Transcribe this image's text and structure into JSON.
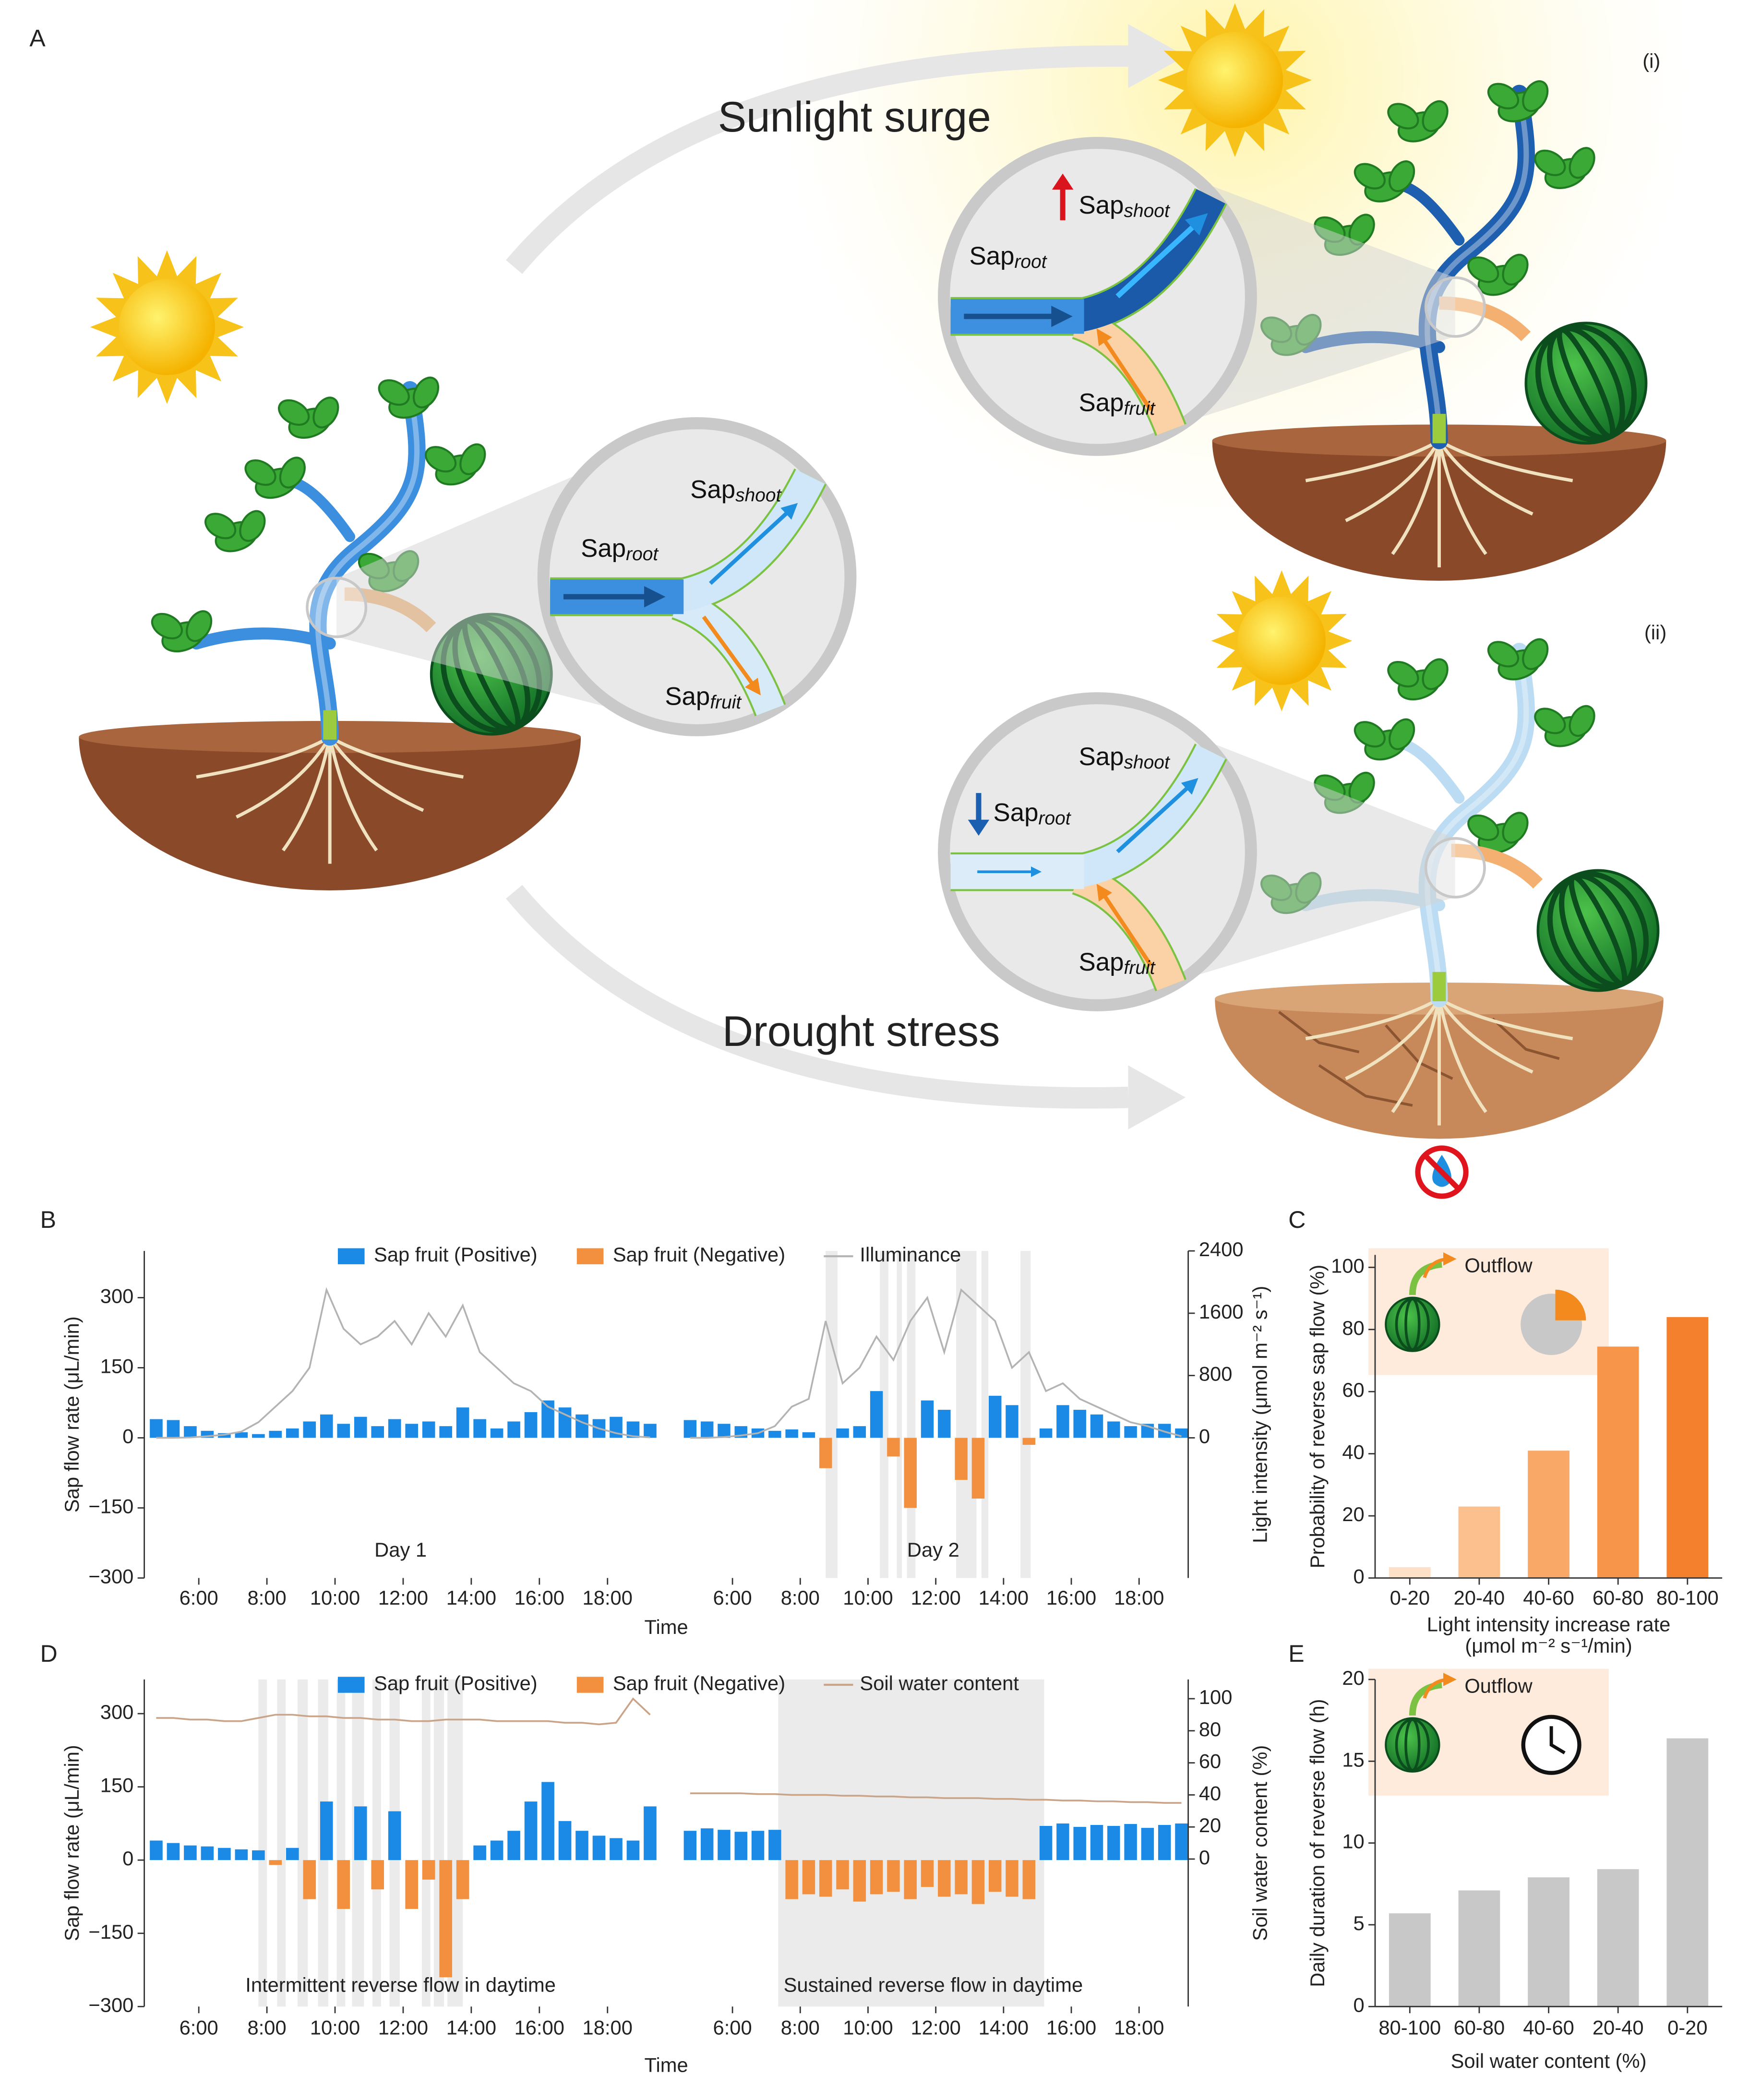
{
  "illustration": {
    "label": "A",
    "top_caption": "Sunlight surge",
    "bottom_caption": "Drought stress",
    "states": [
      "(i)",
      "(ii)"
    ],
    "sap_label": "Sap",
    "subscripts": [
      "shoot",
      "root",
      "fruit"
    ]
  },
  "chart_data": [
    {
      "type": "bar",
      "label": "B",
      "ylabel": "Sap flow rate (μL/min)",
      "y2label": "Light intensity  (μmol m⁻² s⁻¹)",
      "xlabel": "Time",
      "ylim": [
        -300,
        400
      ],
      "yticks": [
        {
          "value": -300,
          "label": "−300"
        },
        {
          "value": -150,
          "label": "−150"
        },
        0,
        150,
        300
      ],
      "y2lim": [
        -1800,
        2400
      ],
      "y2ticks": [
        0,
        800,
        1600,
        2400
      ],
      "xlim": [
        4.4,
        19.45
      ],
      "xticks": [
        {
          "value": 6,
          "label": "6:00"
        },
        {
          "value": 8,
          "label": "8:00"
        },
        {
          "value": 10,
          "label": "10:00"
        },
        {
          "value": 12,
          "label": "12:00"
        },
        {
          "value": 14,
          "label": "14:00"
        },
        {
          "value": 16,
          "label": "16:00"
        },
        {
          "value": 18,
          "label": "18:00"
        }
      ],
      "x": [
        4.75,
        5.25,
        5.75,
        6.25,
        6.75,
        7.25,
        7.75,
        8.25,
        8.75,
        9.25,
        9.75,
        10.25,
        10.75,
        11.25,
        11.75,
        12.25,
        12.75,
        13.25,
        13.75,
        14.25,
        14.75,
        15.25,
        15.75,
        16.25,
        16.75,
        17.25,
        17.75,
        18.25,
        18.75,
        19.25
      ],
      "series": [
        {
          "name": "Sap fruit (Positive)",
          "color": "#1a8ae6"
        },
        {
          "name": "Sap fruit (Negative)",
          "color": "#f2903f"
        },
        {
          "name": "Illuminance",
          "color": "#b3b3b3",
          "axis": "y2"
        }
      ],
      "panels": [
        {
          "annotation": "Day 1",
          "values": [
            40,
            38,
            25,
            15,
            10,
            12,
            8,
            15,
            20,
            35,
            50,
            30,
            45,
            25,
            40,
            30,
            35,
            25,
            65,
            40,
            20,
            35,
            55,
            80,
            65,
            50,
            40,
            45,
            35,
            30
          ],
          "line": [
            0,
            0,
            5,
            20,
            40,
            80,
            200,
            400,
            600,
            900,
            1900,
            1400,
            1200,
            1300,
            1500,
            1200,
            1600,
            1300,
            1700,
            1100,
            900,
            700,
            600,
            400,
            300,
            200,
            120,
            60,
            20,
            5
          ]
        },
        {
          "annotation": "Day 2",
          "values": [
            38,
            35,
            30,
            25,
            20,
            15,
            18,
            12,
            -65,
            20,
            25,
            100,
            -40,
            -150,
            80,
            60,
            -90,
            -130,
            90,
            70,
            -15,
            20,
            70,
            60,
            50,
            35,
            25,
            30,
            30,
            20
          ],
          "line": [
            0,
            0,
            10,
            30,
            60,
            150,
            400,
            500,
            1500,
            700,
            900,
            1300,
            1000,
            1500,
            1800,
            1100,
            1900,
            1700,
            1500,
            900,
            1100,
            600,
            700,
            500,
            400,
            300,
            200,
            150,
            80,
            20
          ],
          "highlights": [
            [
              8.75,
              9.1
            ],
            [
              10.35,
              10.6
            ],
            [
              10.85,
              11.0
            ],
            [
              11.15,
              11.4
            ],
            [
              12.6,
              13.2
            ],
            [
              13.35,
              13.55
            ],
            [
              14.5,
              14.8
            ]
          ]
        }
      ]
    },
    {
      "type": "bar",
      "label": "C",
      "ylabel": "Probability of reverse sap flow (%)",
      "xlabel": [
        "Light intensity increase rate",
        "(μmol m⁻² s⁻¹/min)"
      ],
      "categories": [
        "0-20",
        "20-40",
        "40-60",
        "60-80",
        "80-100"
      ],
      "values": [
        3.5,
        23,
        41,
        74.5,
        84
      ],
      "colors": [
        "#fde0c5",
        "#fbc08d",
        "#f9a868",
        "#f7954a",
        "#f47f2c"
      ],
      "ylim": [
        0,
        104
      ],
      "yticks": [
        0,
        20,
        40,
        60,
        80,
        100
      ],
      "inset_label": "Outflow"
    },
    {
      "type": "bar",
      "label": "D",
      "ylabel": "Sap flow rate (μL/min)",
      "y2label": "Soil water content (%)",
      "xlabel": "Time",
      "ylim": [
        -300,
        370
      ],
      "yticks": [
        {
          "value": -300,
          "label": "−300"
        },
        {
          "value": -150,
          "label": "−150"
        },
        0,
        150,
        300
      ],
      "y2lim": [
        -92,
        112
      ],
      "y2ticks": [
        0,
        20,
        40,
        60,
        80,
        100
      ],
      "xlim": [
        4.4,
        19.45
      ],
      "xticks": [
        {
          "value": 6,
          "label": "6:00"
        },
        {
          "value": 8,
          "label": "8:00"
        },
        {
          "value": 10,
          "label": "10:00"
        },
        {
          "value": 12,
          "label": "12:00"
        },
        {
          "value": 14,
          "label": "14:00"
        },
        {
          "value": 16,
          "label": "16:00"
        },
        {
          "value": 18,
          "label": "18:00"
        }
      ],
      "x": [
        4.75,
        5.25,
        5.75,
        6.25,
        6.75,
        7.25,
        7.75,
        8.25,
        8.75,
        9.25,
        9.75,
        10.25,
        10.75,
        11.25,
        11.75,
        12.25,
        12.75,
        13.25,
        13.75,
        14.25,
        14.75,
        15.25,
        15.75,
        16.25,
        16.75,
        17.25,
        17.75,
        18.25,
        18.75,
        19.25
      ],
      "series": [
        {
          "name": "Sap fruit (Positive)",
          "color": "#1a8ae6"
        },
        {
          "name": "Sap fruit (Negative)",
          "color": "#f2903f"
        },
        {
          "name": "Soil water content",
          "color": "#c9a489",
          "axis": "y2"
        }
      ],
      "panels": [
        {
          "annotation": "Intermittent reverse flow in daytime",
          "values": [
            40,
            35,
            30,
            28,
            25,
            22,
            20,
            -10,
            25,
            -80,
            120,
            -100,
            110,
            -60,
            100,
            -100,
            -40,
            -240,
            -80,
            30,
            40,
            60,
            120,
            160,
            80,
            60,
            50,
            45,
            40,
            110
          ],
          "line": [
            88,
            88,
            87,
            87,
            86,
            86,
            88,
            90,
            90,
            89,
            89,
            88,
            88,
            87,
            87,
            86,
            86,
            87,
            87,
            87,
            86,
            86,
            86,
            86,
            85,
            85,
            84,
            85,
            100,
            90
          ],
          "highlights": [
            [
              7.75,
              8.0
            ],
            [
              8.3,
              8.55
            ],
            [
              8.9,
              9.2
            ],
            [
              9.5,
              9.8
            ],
            [
              10.05,
              10.3
            ],
            [
              10.5,
              10.85
            ],
            [
              11.1,
              11.35
            ],
            [
              11.6,
              11.9
            ],
            [
              12.55,
              12.8
            ],
            [
              12.9,
              13.2
            ],
            [
              13.3,
              13.75
            ]
          ]
        },
        {
          "annotation": "Sustained reverse flow in daytime",
          "values": [
            60,
            65,
            62,
            58,
            60,
            62,
            -80,
            -70,
            -75,
            -60,
            -85,
            -70,
            -65,
            -80,
            -55,
            -75,
            -70,
            -90,
            -65,
            -75,
            -80,
            70,
            75,
            68,
            72,
            70,
            74,
            66,
            72,
            75
          ],
          "line": [
            41,
            41,
            41,
            41,
            40.5,
            40.5,
            40,
            40,
            40,
            39.5,
            39.5,
            39,
            39,
            38.5,
            38.5,
            38,
            38,
            38,
            37.5,
            37.5,
            37,
            37,
            36.5,
            36.5,
            36,
            36,
            35.5,
            35.5,
            35,
            35
          ],
          "highlights": [
            [
              7.35,
              15.2
            ]
          ]
        }
      ]
    },
    {
      "type": "bar",
      "label": "E",
      "ylabel": "Daily duration of reverse flow (h)",
      "xlabel": [
        "Soil water content (%)"
      ],
      "categories": [
        "80-100",
        "60-80",
        "40-60",
        "20-40",
        "0-20"
      ],
      "values": [
        5.7,
        7.1,
        7.9,
        8.4,
        16.4
      ],
      "color": "#c8c8c8",
      "ylim": [
        0,
        20
      ],
      "yticks": [
        0,
        5,
        10,
        15,
        20
      ],
      "inset_label": "Outflow"
    }
  ]
}
